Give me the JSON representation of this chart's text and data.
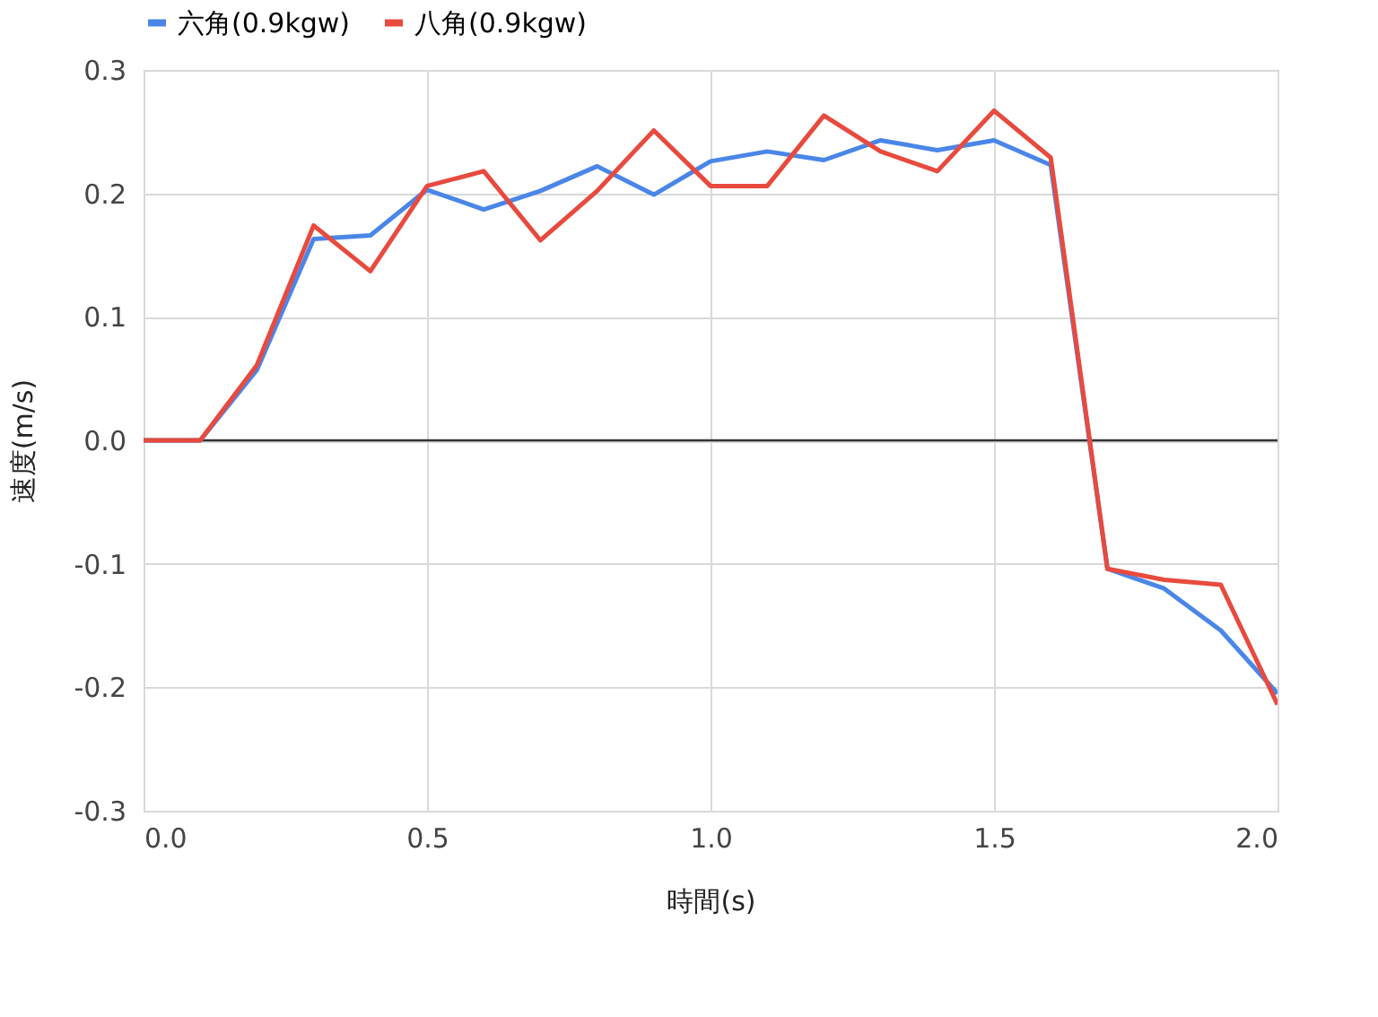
{
  "chart_data": {
    "type": "line",
    "xlabel": "時間(s)",
    "ylabel": "速度(m/s)",
    "x": [
      0.0,
      0.1,
      0.2,
      0.3,
      0.4,
      0.5,
      0.6,
      0.7,
      0.8,
      0.9,
      1.0,
      1.1,
      1.2,
      1.3,
      1.4,
      1.5,
      1.6,
      1.7,
      1.8,
      1.9,
      2.0
    ],
    "series": [
      {
        "name": "六角(0.9kgw)",
        "color": "#4a86e8",
        "values": [
          0,
          0,
          0.057,
          0.163,
          0.166,
          0.203,
          0.187,
          0.202,
          0.222,
          0.199,
          0.226,
          0.234,
          0.227,
          0.243,
          0.235,
          0.243,
          0.223,
          -0.104,
          -0.12,
          -0.154,
          -0.205
        ]
      },
      {
        "name": "八角(0.9kgw)",
        "color": "#e84a3e",
        "values": [
          0,
          0,
          0.061,
          0.174,
          0.137,
          0.206,
          0.218,
          0.162,
          0.202,
          0.251,
          0.206,
          0.206,
          0.263,
          0.234,
          0.218,
          0.267,
          0.229,
          -0.104,
          -0.113,
          -0.117,
          -0.214
        ]
      }
    ],
    "xlim": [
      0.0,
      2.0
    ],
    "xticks": [
      {
        "value": 0,
        "label": "0.0"
      },
      {
        "value": 0.5,
        "label": "0.5"
      },
      {
        "value": 1,
        "label": "1.0"
      },
      {
        "value": 1.5,
        "label": "1.5"
      },
      {
        "value": 2,
        "label": "2.0"
      }
    ],
    "ylim": [
      -0.3,
      0.3
    ],
    "yticks": [
      -0.3,
      -0.2,
      -0.1,
      {
        "value": 0,
        "label": "0.0"
      },
      0.1,
      0.2,
      0.3
    ],
    "ref_lines": [
      {
        "axis": "y",
        "value": 0,
        "color": "#333333"
      }
    ],
    "grid": true,
    "legend": "top",
    "marker": "none",
    "line_style": "solid"
  }
}
